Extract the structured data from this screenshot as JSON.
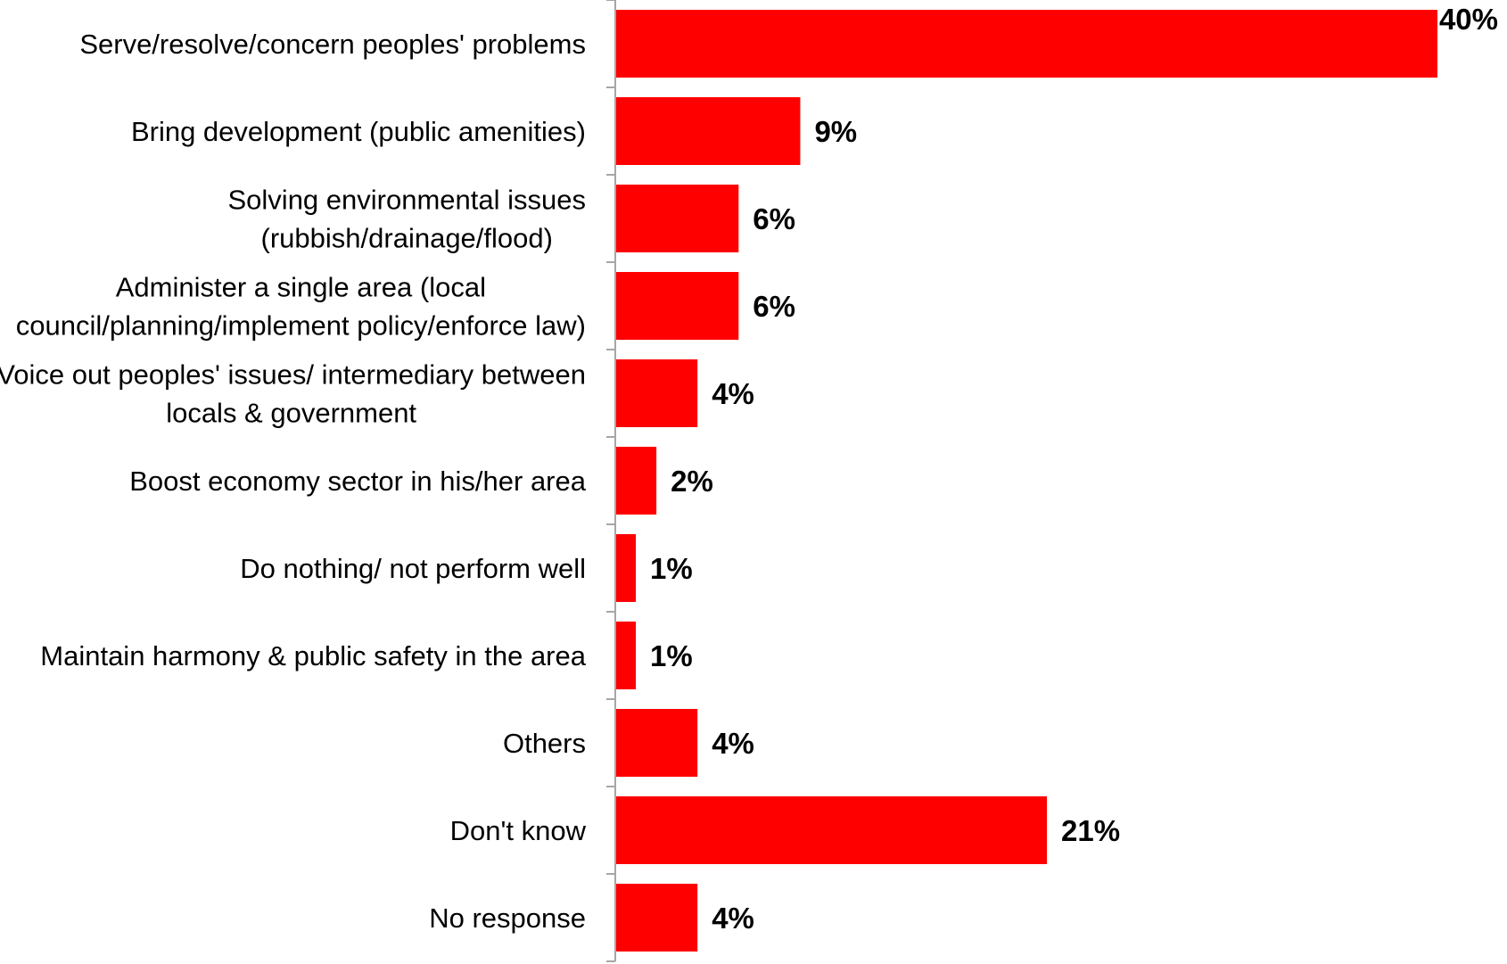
{
  "chart_data": {
    "type": "bar",
    "orientation": "horizontal",
    "categories": [
      [
        "Serve/resolve/concern peoples' problems"
      ],
      [
        "Bring development (public amenities)"
      ],
      [
        "Solving environmental issues",
        "(rubbish/drainage/flood)"
      ],
      [
        "Administer a single area (local",
        "council/planning/implement policy/enforce law)"
      ],
      [
        "Voice out peoples' issues/ intermediary between",
        "locals & government"
      ],
      [
        "Boost economy sector in his/her area"
      ],
      [
        "Do nothing/ not perform well"
      ],
      [
        "Maintain harmony & public safety in the area"
      ],
      [
        "Others"
      ],
      [
        "Don't know"
      ],
      [
        "No response"
      ]
    ],
    "values": [
      40,
      9,
      6,
      6,
      4,
      2,
      1,
      1,
      4,
      21,
      4
    ],
    "value_labels": [
      "40%",
      "9%",
      "6%",
      "6%",
      "4%",
      "2%",
      "1%",
      "1%",
      "4%",
      "21%",
      "4%"
    ],
    "value_unit": "%",
    "xlim": [
      0,
      40
    ],
    "grid": false,
    "legend": "none",
    "bar_color": "#ff0000",
    "axis_color": "#a6a6a6",
    "title": "",
    "xlabel": "",
    "ylabel": ""
  }
}
